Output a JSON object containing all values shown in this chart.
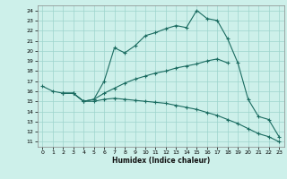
{
  "xlabel": "Humidex (Indice chaleur)",
  "bg_color": "#cdf0ea",
  "grid_color": "#9dd4cc",
  "line_color": "#1a6b60",
  "xlim": [
    -0.5,
    23.5
  ],
  "ylim": [
    10.5,
    24.5
  ],
  "yticks": [
    11,
    12,
    13,
    14,
    15,
    16,
    17,
    18,
    19,
    20,
    21,
    22,
    23,
    24
  ],
  "xticks": [
    0,
    1,
    2,
    3,
    4,
    5,
    6,
    7,
    8,
    9,
    10,
    11,
    12,
    13,
    14,
    15,
    16,
    17,
    18,
    19,
    20,
    21,
    22,
    23
  ],
  "lines": [
    {
      "x": [
        0,
        1,
        2,
        3,
        4,
        5,
        6,
        7,
        8,
        9,
        10,
        11,
        12,
        13,
        14,
        15,
        16,
        17,
        18,
        19,
        20,
        21,
        22,
        23
      ],
      "y": [
        16.5,
        16.0,
        15.8,
        15.8,
        15.0,
        15.2,
        17.0,
        20.3,
        19.8,
        20.5,
        21.5,
        21.8,
        22.2,
        22.5,
        22.3,
        24.0,
        23.2,
        23.0,
        21.2,
        18.8,
        15.2,
        13.5,
        13.2,
        11.5
      ]
    },
    {
      "x": [
        2,
        3,
        4,
        5,
        6,
        7,
        8,
        9,
        10,
        11,
        12,
        13,
        14,
        15,
        16,
        17,
        18
      ],
      "y": [
        15.8,
        15.8,
        15.0,
        15.2,
        15.8,
        16.3,
        16.8,
        17.2,
        17.5,
        17.8,
        18.0,
        18.3,
        18.5,
        18.7,
        19.0,
        19.2,
        18.8
      ]
    },
    {
      "x": [
        2,
        3,
        4,
        5,
        6,
        7,
        8,
        9,
        10,
        11,
        12,
        13,
        14,
        15,
        16,
        17,
        18,
        19,
        20,
        21,
        22,
        23
      ],
      "y": [
        15.8,
        15.8,
        15.0,
        15.0,
        15.2,
        15.3,
        15.2,
        15.1,
        15.0,
        14.9,
        14.8,
        14.6,
        14.4,
        14.2,
        13.9,
        13.6,
        13.2,
        12.8,
        12.3,
        11.8,
        11.5,
        11.0
      ]
    }
  ]
}
